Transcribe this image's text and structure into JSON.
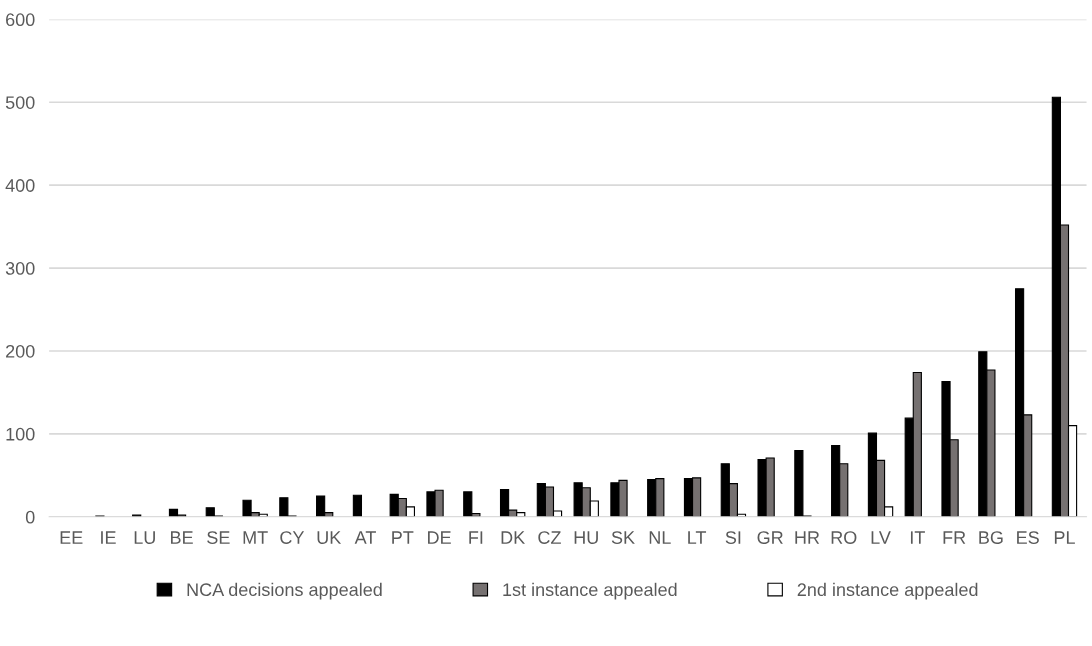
{
  "chart_data": {
    "type": "bar",
    "categories": [
      "EE",
      "IE",
      "LU",
      "BE",
      "SE",
      "MT",
      "CY",
      "UK",
      "AT",
      "PT",
      "DE",
      "FI",
      "DK",
      "CZ",
      "HU",
      "SK",
      "NL",
      "LT",
      "SI",
      "GR",
      "HR",
      "RO",
      "LV",
      "IT",
      "FR",
      "BG",
      "ES",
      "PL"
    ],
    "series": [
      {
        "name": "NCA decisions appealed",
        "color": "#000000",
        "values": [
          0,
          1,
          2,
          9,
          11,
          20,
          23,
          25,
          26,
          27,
          30,
          30,
          33,
          40,
          41,
          41,
          45,
          46,
          64,
          69,
          80,
          86,
          101,
          119,
          163,
          199,
          275,
          506
        ]
      },
      {
        "name": "1st instance appealed",
        "color": "#767171",
        "values": [
          0,
          0,
          0,
          2,
          1,
          5,
          1,
          5,
          0,
          22,
          32,
          4,
          8,
          36,
          35,
          44,
          46,
          47,
          40,
          71,
          1,
          64,
          68,
          174,
          93,
          177,
          123,
          352
        ]
      },
      {
        "name": "2nd instance appealed",
        "color": "#ffffff",
        "values": [
          0,
          0,
          0,
          0,
          0,
          3,
          0,
          0,
          0,
          12,
          0,
          0,
          5,
          7,
          19,
          0,
          0,
          0,
          3,
          0,
          0,
          0,
          12,
          0,
          0,
          0,
          0,
          110
        ]
      }
    ],
    "ylim": [
      0,
      600
    ],
    "yticks": [
      0,
      100,
      200,
      300,
      400,
      500,
      600
    ],
    "grid": "y",
    "legend": "bottom"
  }
}
